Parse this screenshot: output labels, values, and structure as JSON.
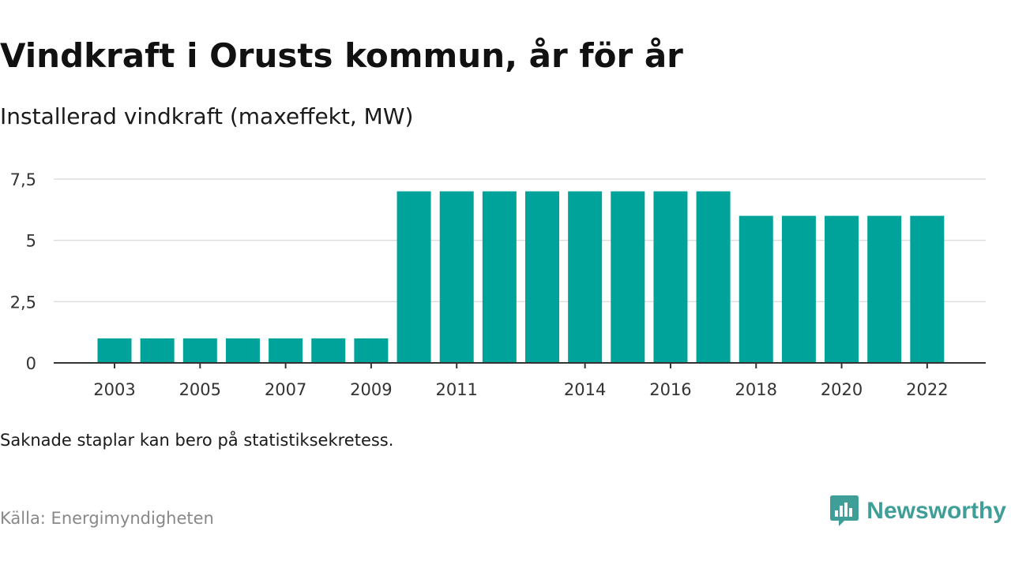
{
  "header": {
    "title": "Vindkraft i Orusts kommun, år för år",
    "subtitle": "Installerad vindkraft (maxeffekt, MW)"
  },
  "chart_data": {
    "type": "bar",
    "categories": [
      "2003",
      "2004",
      "2005",
      "2006",
      "2007",
      "2008",
      "2009",
      "2010",
      "2011",
      "2012",
      "2013",
      "2014",
      "2015",
      "2016",
      "2017",
      "2018",
      "2019",
      "2020",
      "2021",
      "2022"
    ],
    "values": [
      1,
      1,
      1,
      1,
      1,
      1,
      1,
      7,
      7,
      7,
      7,
      7,
      7,
      7,
      7,
      6,
      6,
      6,
      6,
      6
    ],
    "x_tick_labels": [
      "2003",
      "2005",
      "2007",
      "2009",
      "2011",
      "2014",
      "2016",
      "2018",
      "2020",
      "2022"
    ],
    "y_ticks": [
      0,
      2.5,
      5,
      7.5
    ],
    "y_tick_labels": [
      "0",
      "2,5",
      "5",
      "7,5"
    ],
    "ylim": [
      0,
      7.5
    ],
    "grid": true,
    "title": "Vindkraft i Orusts kommun, år för år",
    "xlabel": "",
    "ylabel": "Installerad vindkraft (maxeffekt, MW)",
    "bar_color": "#00a39a",
    "grid_color": "#dddddd",
    "axis_color": "#333333"
  },
  "footer": {
    "note": "Saknade staplar kan bero på statistiksekretess.",
    "source": "Källa: Energimyndigheten",
    "brand": "Newsworthy",
    "brand_color": "#3f9e97",
    "logo_icon": "bar-chart-speech-bubble-icon"
  }
}
